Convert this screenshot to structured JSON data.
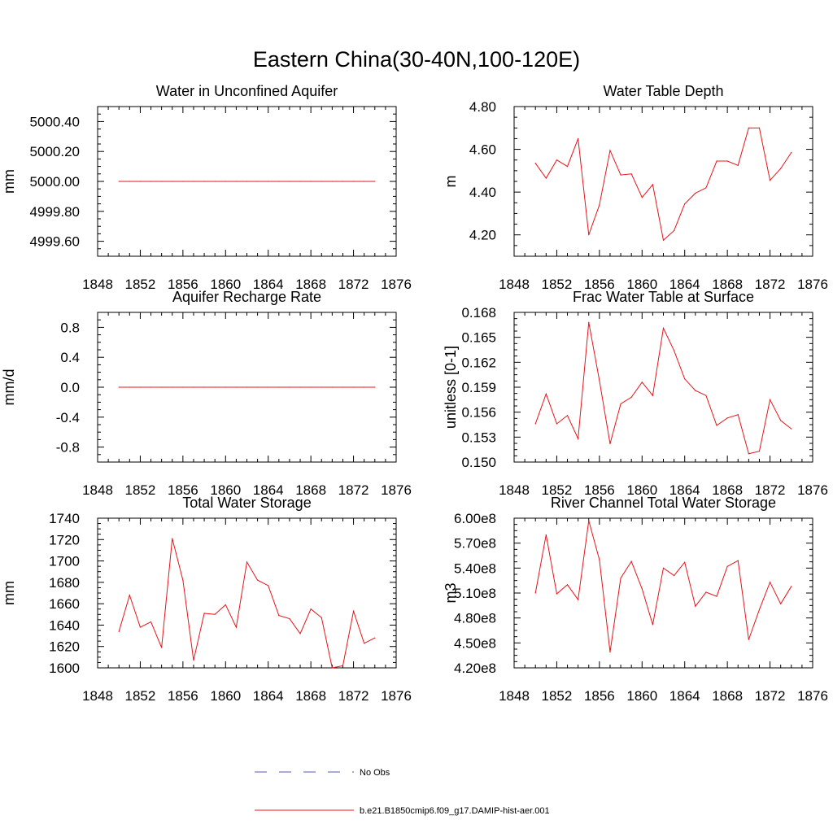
{
  "figure": {
    "title": "Eastern China(30-40N,100-120E)"
  },
  "colors": {
    "model_line": "#e8141b",
    "obs_line": "#5a5ab4",
    "axis": "#000000"
  },
  "legend": {
    "placement": "bottom-center",
    "entries": [
      {
        "label": "No Obs",
        "style": "dashed",
        "color": "#5a5ab4"
      },
      {
        "label": "b.e21.B1850cmip6.f09_g17.DAMIP-hist-aer.001",
        "style": "solid",
        "color": "#e8141b"
      }
    ]
  },
  "chart_data": [
    {
      "type": "line",
      "title": "Water in Unconfined Aquifer",
      "ylabel": "mm",
      "xlim": [
        1848,
        1876
      ],
      "ylim": [
        4999.5,
        5000.5
      ],
      "xticks": [
        "1848",
        "1852",
        "1856",
        "1860",
        "1864",
        "1868",
        "1872",
        "1876"
      ],
      "yticks": [
        {
          "v": 4999.6,
          "label": "4999.60"
        },
        {
          "v": 4999.8,
          "label": "4999.80"
        },
        {
          "v": 5000.0,
          "label": "5000.00"
        },
        {
          "v": 5000.2,
          "label": "5000.20"
        },
        {
          "v": 5000.4,
          "label": "5000.40"
        }
      ],
      "grid": false,
      "x": [
        1850,
        1851,
        1852,
        1853,
        1854,
        1855,
        1856,
        1857,
        1858,
        1859,
        1860,
        1861,
        1862,
        1863,
        1864,
        1865,
        1866,
        1867,
        1868,
        1869,
        1870,
        1871,
        1872,
        1873,
        1874
      ],
      "series": [
        {
          "values": [
            5000,
            5000,
            5000,
            5000,
            5000,
            5000,
            5000,
            5000,
            5000,
            5000,
            5000,
            5000,
            5000,
            5000,
            5000,
            5000,
            5000,
            5000,
            5000,
            5000,
            5000,
            5000,
            5000,
            5000,
            5000
          ]
        }
      ]
    },
    {
      "type": "line",
      "title": "Water Table Depth",
      "ylabel": "m",
      "xlim": [
        1848,
        1876
      ],
      "ylim": [
        4.1,
        4.8
      ],
      "xticks": [
        "1848",
        "1852",
        "1856",
        "1860",
        "1864",
        "1868",
        "1872",
        "1876"
      ],
      "yticks": [
        {
          "v": 4.2,
          "label": "4.20"
        },
        {
          "v": 4.4,
          "label": "4.40"
        },
        {
          "v": 4.6,
          "label": "4.60"
        },
        {
          "v": 4.8,
          "label": "4.80"
        }
      ],
      "grid": false,
      "x": [
        1850,
        1851,
        1852,
        1853,
        1854,
        1855,
        1856,
        1857,
        1858,
        1859,
        1860,
        1861,
        1862,
        1863,
        1864,
        1865,
        1866,
        1867,
        1868,
        1869,
        1870,
        1871,
        1872,
        1873,
        1874
      ],
      "series": [
        {
          "values": [
            4.535,
            4.465,
            4.55,
            4.52,
            4.65,
            4.2,
            4.34,
            4.595,
            4.48,
            4.485,
            4.375,
            4.435,
            4.175,
            4.22,
            4.345,
            4.395,
            4.42,
            4.545,
            4.545,
            4.525,
            4.7,
            4.7,
            4.455,
            4.51,
            4.585
          ]
        }
      ]
    },
    {
      "type": "line",
      "title": "Aquifer Recharge Rate",
      "ylabel": "mm/d",
      "xlim": [
        1848,
        1876
      ],
      "ylim": [
        -1.0,
        1.0
      ],
      "xticks": [
        "1848",
        "1852",
        "1856",
        "1860",
        "1864",
        "1868",
        "1872",
        "1876"
      ],
      "yticks": [
        {
          "v": -0.8,
          "label": "-0.8"
        },
        {
          "v": -0.4,
          "label": "-0.4"
        },
        {
          "v": 0.0,
          "label": "0.0"
        },
        {
          "v": 0.4,
          "label": "0.4"
        },
        {
          "v": 0.8,
          "label": "0.8"
        }
      ],
      "grid": false,
      "x": [
        1850,
        1851,
        1852,
        1853,
        1854,
        1855,
        1856,
        1857,
        1858,
        1859,
        1860,
        1861,
        1862,
        1863,
        1864,
        1865,
        1866,
        1867,
        1868,
        1869,
        1870,
        1871,
        1872,
        1873,
        1874
      ],
      "series": [
        {
          "values": [
            0,
            0,
            0,
            0,
            0,
            0,
            0,
            0,
            0,
            0,
            0,
            0,
            0,
            0,
            0,
            0,
            0,
            0,
            0,
            0,
            0,
            0,
            0,
            0,
            0
          ]
        }
      ]
    },
    {
      "type": "line",
      "title": "Frac Water Table at Surface",
      "ylabel": "unitless [0-1]",
      "xlim": [
        1848,
        1876
      ],
      "ylim": [
        0.15,
        0.168
      ],
      "xticks": [
        "1848",
        "1852",
        "1856",
        "1860",
        "1864",
        "1868",
        "1872",
        "1876"
      ],
      "yticks": [
        {
          "v": 0.15,
          "label": "0.150"
        },
        {
          "v": 0.153,
          "label": "0.153"
        },
        {
          "v": 0.156,
          "label": "0.156"
        },
        {
          "v": 0.159,
          "label": "0.159"
        },
        {
          "v": 0.162,
          "label": "0.162"
        },
        {
          "v": 0.165,
          "label": "0.165"
        },
        {
          "v": 0.168,
          "label": "0.168"
        }
      ],
      "grid": false,
      "x": [
        1850,
        1851,
        1852,
        1853,
        1854,
        1855,
        1856,
        1857,
        1858,
        1859,
        1860,
        1861,
        1862,
        1863,
        1864,
        1865,
        1866,
        1867,
        1868,
        1869,
        1870,
        1871,
        1872,
        1873,
        1874
      ],
      "series": [
        {
          "values": [
            0.1546,
            0.1582,
            0.1546,
            0.1556,
            0.1528,
            0.1668,
            0.1598,
            0.1522,
            0.157,
            0.1578,
            0.1596,
            0.158,
            0.1661,
            0.1634,
            0.16,
            0.1586,
            0.158,
            0.1544,
            0.1553,
            0.1557,
            0.151,
            0.1513,
            0.1575,
            0.155,
            0.154
          ]
        }
      ]
    },
    {
      "type": "line",
      "title": "Total Water Storage",
      "ylabel": "mm",
      "xlim": [
        1848,
        1876
      ],
      "ylim": [
        1600,
        1740
      ],
      "xticks": [
        "1848",
        "1852",
        "1856",
        "1860",
        "1864",
        "1868",
        "1872",
        "1876"
      ],
      "yticks": [
        {
          "v": 1600,
          "label": "1600"
        },
        {
          "v": 1620,
          "label": "1620"
        },
        {
          "v": 1640,
          "label": "1640"
        },
        {
          "v": 1660,
          "label": "1660"
        },
        {
          "v": 1680,
          "label": "1680"
        },
        {
          "v": 1700,
          "label": "1700"
        },
        {
          "v": 1720,
          "label": "1720"
        },
        {
          "v": 1740,
          "label": "1740"
        }
      ],
      "grid": false,
      "x": [
        1850,
        1851,
        1852,
        1853,
        1854,
        1855,
        1856,
        1857,
        1858,
        1859,
        1860,
        1861,
        1862,
        1863,
        1864,
        1865,
        1866,
        1867,
        1868,
        1869,
        1870,
        1871,
        1872,
        1873,
        1874
      ],
      "series": [
        {
          "values": [
            1634,
            1668,
            1638,
            1643,
            1619,
            1721,
            1682,
            1607,
            1651,
            1650,
            1659,
            1638,
            1699,
            1682,
            1677,
            1649,
            1646,
            1632,
            1655,
            1647,
            1600,
            1602,
            1653,
            1623,
            1628
          ]
        }
      ]
    },
    {
      "type": "line",
      "title": "River Channel Total Water Storage",
      "ylabel": "m3",
      "xlim": [
        1848,
        1876
      ],
      "ylim": [
        4.2,
        6.0
      ],
      "xticks": [
        "1848",
        "1852",
        "1856",
        "1860",
        "1864",
        "1868",
        "1872",
        "1876"
      ],
      "yticks": [
        {
          "v": 4.2,
          "label": "4.20e8"
        },
        {
          "v": 4.5,
          "label": "4.50e8"
        },
        {
          "v": 4.8,
          "label": "4.80e8"
        },
        {
          "v": 5.1,
          "label": "5.10e8"
        },
        {
          "v": 5.4,
          "label": "5.40e8"
        },
        {
          "v": 5.7,
          "label": "5.70e8"
        },
        {
          "v": 6.0,
          "label": "6.00e8"
        }
      ],
      "grid": false,
      "x": [
        1850,
        1851,
        1852,
        1853,
        1854,
        1855,
        1856,
        1857,
        1858,
        1859,
        1860,
        1861,
        1862,
        1863,
        1864,
        1865,
        1866,
        1867,
        1868,
        1869,
        1870,
        1871,
        1872,
        1873,
        1874
      ],
      "series": [
        {
          "values": [
            5.1,
            5.8,
            5.09,
            5.2,
            5.02,
            5.97,
            5.5,
            4.39,
            5.28,
            5.48,
            5.15,
            4.72,
            5.4,
            5.31,
            5.47,
            4.94,
            5.11,
            5.06,
            5.42,
            5.49,
            4.54,
            4.9,
            5.23,
            4.97,
            5.18
          ]
        }
      ]
    }
  ]
}
